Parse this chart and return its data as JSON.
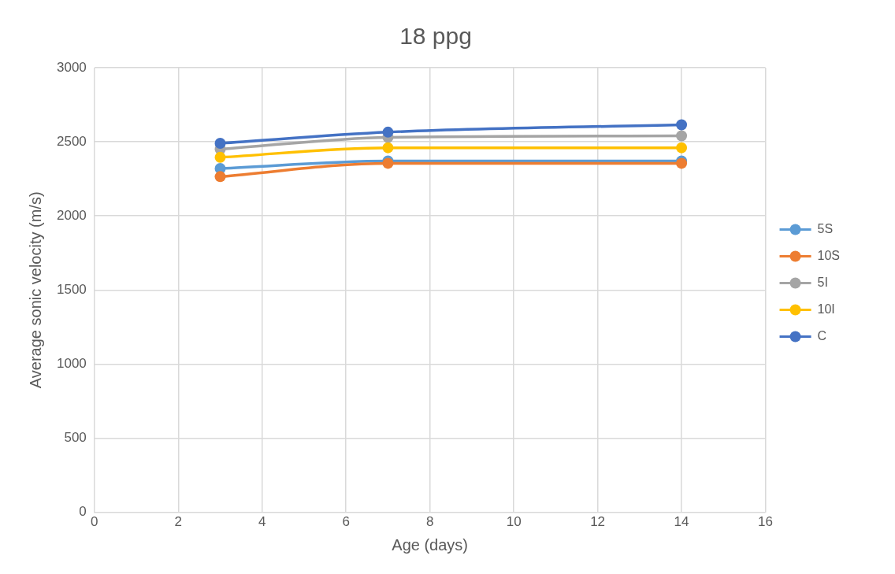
{
  "chart_data": {
    "type": "line",
    "title": "18 ppg",
    "xlabel": "Age (days)",
    "ylabel": "Average sonic velocity (m/s)",
    "x": [
      3,
      7,
      14
    ],
    "series": [
      {
        "name": "5S",
        "color": "#5b9bd5",
        "values": [
          2320,
          2370,
          2370
        ]
      },
      {
        "name": "10S",
        "color": "#ed7d31",
        "values": [
          2265,
          2355,
          2355
        ]
      },
      {
        "name": "5I",
        "color": "#a5a5a5",
        "values": [
          2450,
          2530,
          2540
        ]
      },
      {
        "name": "10I",
        "color": "#ffc000",
        "values": [
          2395,
          2460,
          2460
        ]
      },
      {
        "name": "C",
        "color": "#4472c4",
        "values": [
          2490,
          2565,
          2615
        ]
      }
    ],
    "xlim": [
      0,
      16
    ],
    "xticks": [
      0,
      2,
      4,
      6,
      8,
      10,
      12,
      14,
      16
    ],
    "ylim": [
      0,
      3000
    ],
    "yticks": [
      0,
      500,
      1000,
      1500,
      2000,
      2500,
      3000
    ],
    "grid": true,
    "legend": "right",
    "marker": "circle",
    "line_style": "solid"
  }
}
